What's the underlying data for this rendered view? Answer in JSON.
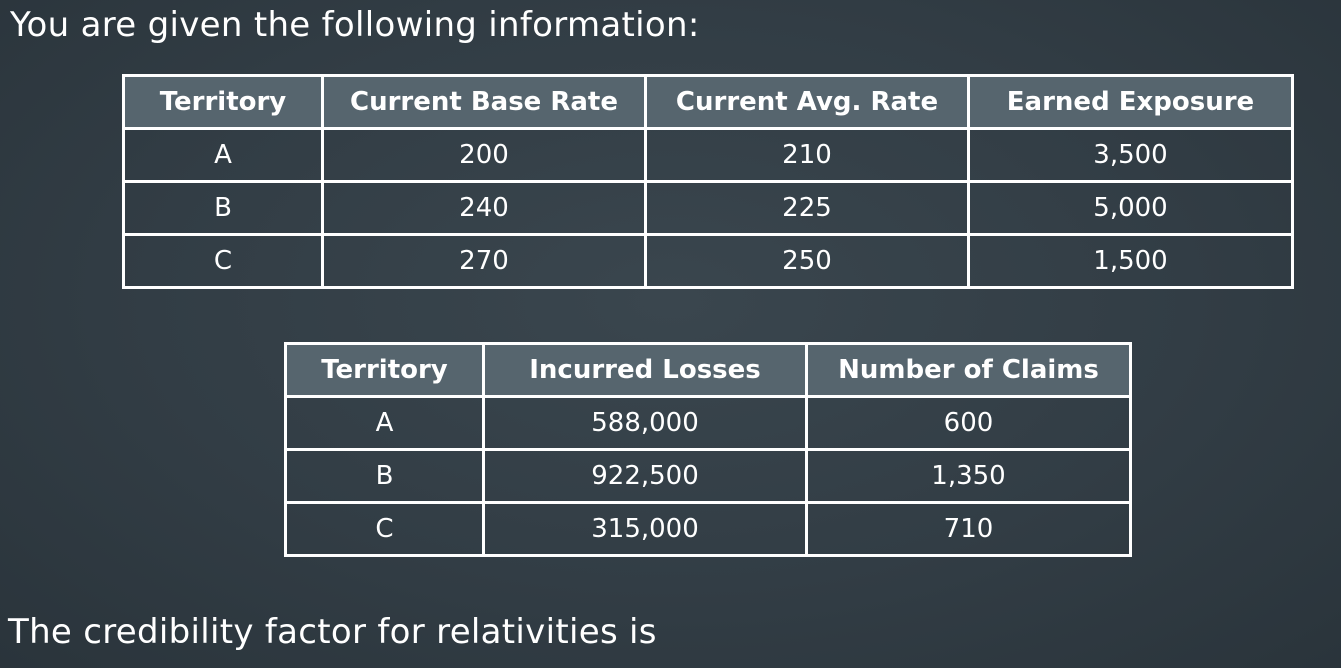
{
  "heading": "You are given the following information:",
  "table1": {
    "headers": [
      "Territory",
      "Current Base Rate",
      "Current Avg. Rate",
      "Earned Exposure"
    ],
    "rows": [
      [
        "A",
        "200",
        "210",
        "3,500"
      ],
      [
        "B",
        "240",
        "225",
        "5,000"
      ],
      [
        "C",
        "270",
        "250",
        "1,500"
      ]
    ]
  },
  "table2": {
    "headers": [
      "Territory",
      "Incurred Losses",
      "Number of Claims"
    ],
    "rows": [
      [
        "A",
        "588,000",
        "600"
      ],
      [
        "B",
        "922,500",
        "1,350"
      ],
      [
        "C",
        "315,000",
        "710"
      ]
    ]
  },
  "footer": "The credibility factor for relativities is"
}
